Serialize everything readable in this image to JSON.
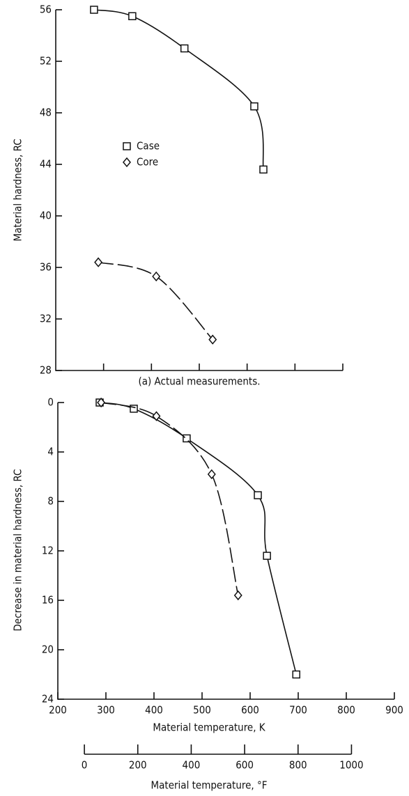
{
  "chart_data": [
    {
      "type": "line",
      "ylabel": "Material hardness, RC",
      "caption": "(a) Actual measurements.",
      "xlim": [
        200,
        800
      ],
      "xticks": [
        300,
        400,
        500,
        600,
        700,
        800
      ],
      "ylim": [
        28,
        56
      ],
      "yticks": [
        28,
        32,
        36,
        40,
        44,
        48,
        52,
        56
      ],
      "legend": "upper left",
      "series": [
        {
          "name": "Case",
          "marker": "square",
          "dash": false,
          "color": "#111",
          "x": [
            280,
            360,
            469,
            615,
            634
          ],
          "values": [
            56,
            55.5,
            53,
            48.5,
            43.6
          ]
        },
        {
          "name": "Core",
          "marker": "diamond",
          "dash": true,
          "color": "#111",
          "x": [
            289,
            410,
            528
          ],
          "values": [
            36.4,
            35.3,
            30.4
          ]
        }
      ]
    },
    {
      "type": "line",
      "ylabel": "Decrease in material hardness, RC",
      "xlabel": "Material temperature, K",
      "xlim": [
        200,
        900
      ],
      "xticks": [
        200,
        300,
        400,
        500,
        600,
        700,
        800,
        900
      ],
      "ylim": [
        0,
        24
      ],
      "yticks": [
        0,
        4,
        8,
        12,
        16,
        20,
        24
      ],
      "y_inverted": true,
      "x2label": "Material temperature, °F",
      "x2lim": [
        -99.4,
        1160.6
      ],
      "x2ticks": [
        0,
        200,
        400,
        600,
        800,
        1000
      ],
      "series": [
        {
          "name": "Case",
          "marker": "square",
          "dash": false,
          "color": "#111",
          "x": [
            287,
            358,
            468,
            616,
            635,
            696
          ],
          "values": [
            0,
            0.5,
            2.9,
            7.5,
            12.4,
            22
          ]
        },
        {
          "name": "Core",
          "marker": "diamond",
          "dash": true,
          "color": "#111",
          "x": [
            290,
            405,
            520,
            575
          ],
          "values": [
            0,
            1.1,
            5.8,
            15.6
          ]
        }
      ]
    }
  ]
}
